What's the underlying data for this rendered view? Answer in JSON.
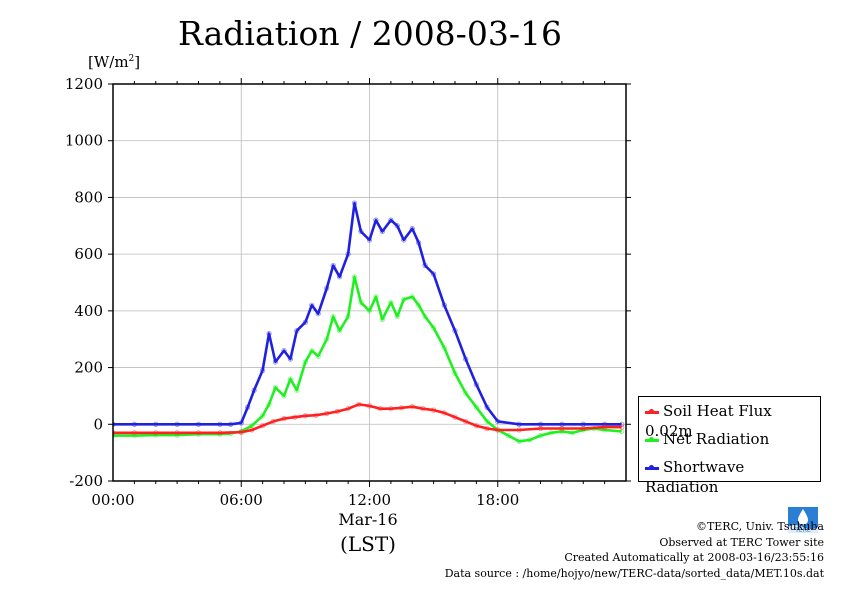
{
  "title": "Radiation / 2008-03-16",
  "unit_label": "[W/m",
  "unit_sup": "2",
  "unit_close": "]",
  "x_date_label": "Mar-16",
  "x_axis_label": "(LST)",
  "credits": [
    "©TERC, Univ. Tsukuba",
    "Observed at TERC Tower site",
    "Created Automatically at 2008-03-16/23:55:16",
    "Data source : /home/hojyo/new/TERC-data/sorted_data/MET.10s.dat"
  ],
  "logo_text": "TERC",
  "colors": {
    "soil": "#ff2020",
    "net": "#20f020",
    "short": "#2020e0"
  },
  "chart_data": {
    "type": "line",
    "title": "Radiation / 2008-03-16",
    "ylabel": "[W/m2]",
    "xlabel": "(LST)",
    "xlim": [
      0,
      24
    ],
    "ylim": [
      -200,
      1200
    ],
    "yticks": [
      -200,
      0,
      200,
      400,
      600,
      800,
      1000,
      1200
    ],
    "xticks": [
      {
        "value": 0,
        "label": "00:00"
      },
      {
        "value": 6,
        "label": "06:00"
      },
      {
        "value": 12,
        "label": "12:00"
      },
      {
        "value": 18,
        "label": "18:00"
      }
    ],
    "legend": "right",
    "series": [
      {
        "name": "Soil Heat Flux 0.02m",
        "color": "#ff2020",
        "x": [
          0,
          1,
          2,
          3,
          4,
          5,
          6,
          6.5,
          7,
          7.5,
          8,
          8.5,
          9,
          9.5,
          10,
          10.5,
          11,
          11.5,
          12,
          12.5,
          13,
          13.5,
          14,
          14.5,
          15,
          15.5,
          16,
          16.5,
          17,
          17.5,
          18,
          19,
          20,
          21,
          22,
          23,
          23.8
        ],
        "y": [
          -30,
          -30,
          -30,
          -30,
          -30,
          -30,
          -28,
          -20,
          -5,
          10,
          20,
          25,
          30,
          32,
          38,
          45,
          55,
          70,
          65,
          55,
          55,
          58,
          62,
          55,
          50,
          40,
          25,
          10,
          -5,
          -15,
          -20,
          -20,
          -15,
          -15,
          -15,
          -10,
          -10
        ]
      },
      {
        "name": "Net Radiation",
        "color": "#20f020",
        "x": [
          0,
          1,
          2,
          3,
          4,
          5,
          5.5,
          6,
          6.5,
          7,
          7.3,
          7.6,
          8,
          8.3,
          8.6,
          9,
          9.3,
          9.6,
          10,
          10.3,
          10.6,
          11,
          11.3,
          11.6,
          12,
          12.3,
          12.6,
          13,
          13.3,
          13.6,
          14,
          14.3,
          14.6,
          15,
          15.5,
          16,
          16.5,
          17,
          17.5,
          18,
          18.5,
          19,
          19.5,
          20,
          20.5,
          21,
          21.5,
          22,
          22.5,
          23,
          23.8
        ],
        "y": [
          -40,
          -40,
          -38,
          -38,
          -35,
          -35,
          -32,
          -25,
          -5,
          30,
          70,
          130,
          100,
          160,
          120,
          220,
          260,
          240,
          300,
          380,
          330,
          380,
          520,
          430,
          400,
          450,
          370,
          430,
          380,
          440,
          450,
          420,
          380,
          340,
          270,
          180,
          110,
          60,
          10,
          -20,
          -40,
          -60,
          -55,
          -40,
          -30,
          -25,
          -30,
          -20,
          -15,
          -20,
          -25
        ]
      },
      {
        "name": "Shortwave Radiation",
        "color": "#2020e0",
        "x": [
          0,
          1,
          2,
          3,
          4,
          5,
          5.5,
          6,
          6.3,
          6.6,
          7,
          7.3,
          7.6,
          8,
          8.3,
          8.6,
          9,
          9.3,
          9.6,
          10,
          10.3,
          10.6,
          11,
          11.3,
          11.6,
          12,
          12.3,
          12.6,
          13,
          13.3,
          13.6,
          14,
          14.3,
          14.6,
          15,
          15.5,
          16,
          16.5,
          17,
          17.5,
          18,
          19,
          20,
          21,
          22,
          23,
          23.8
        ],
        "y": [
          0,
          0,
          0,
          0,
          0,
          0,
          0,
          5,
          60,
          120,
          190,
          320,
          220,
          260,
          230,
          330,
          360,
          420,
          390,
          480,
          560,
          520,
          600,
          780,
          680,
          650,
          720,
          680,
          720,
          700,
          650,
          690,
          640,
          560,
          530,
          420,
          330,
          230,
          140,
          60,
          10,
          0,
          0,
          0,
          0,
          0,
          0
        ]
      }
    ]
  }
}
